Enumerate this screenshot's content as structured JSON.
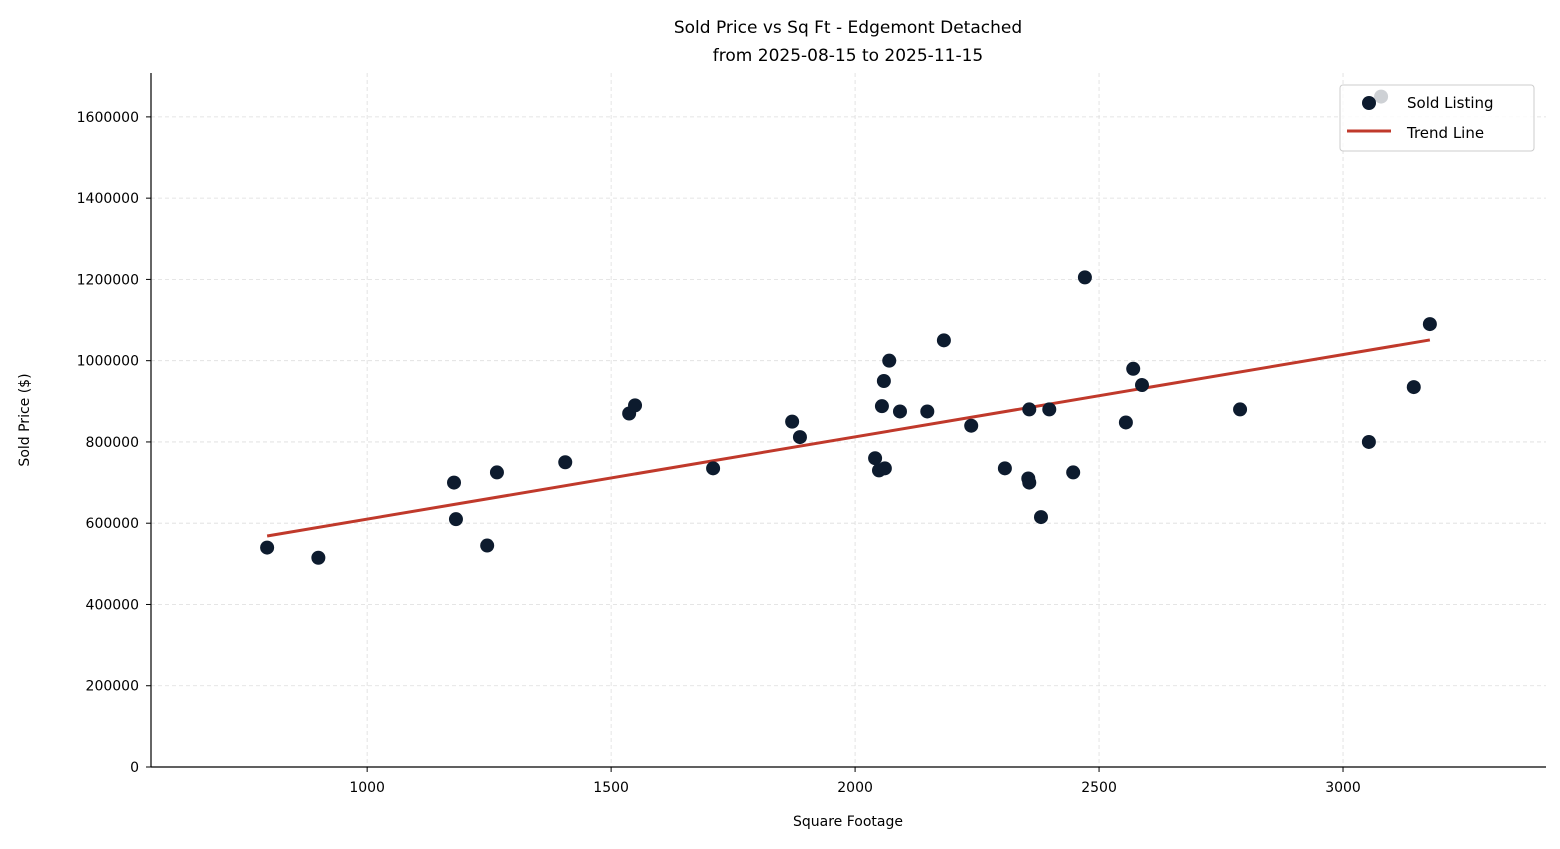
{
  "chart_data": {
    "type": "scatter",
    "title": "Sold Price vs Sq Ft - Edgemont Detached",
    "subtitle": "from 2025-08-15 to 2025-11-15",
    "xlabel": "Square Footage",
    "ylabel": "Sold Price ($)",
    "xlim": [
      557,
      3416
    ],
    "ylim": [
      0,
      1708000
    ],
    "xticks": [
      1000,
      1500,
      2000,
      2500,
      3000
    ],
    "yticks": [
      0,
      200000,
      400000,
      600000,
      800000,
      1000000,
      1200000,
      1400000,
      1600000
    ],
    "grid": true,
    "legend_position": "top-right",
    "series": [
      {
        "name": "Sold Listing",
        "type": "scatter",
        "color": "#0d1b2e",
        "points": [
          [
            795,
            540000
          ],
          [
            900,
            515000
          ],
          [
            1178,
            700000
          ],
          [
            1182,
            610000
          ],
          [
            1246,
            545000
          ],
          [
            1266,
            725000
          ],
          [
            1406,
            750000
          ],
          [
            1537,
            870000
          ],
          [
            1549,
            890000
          ],
          [
            1709,
            735000
          ],
          [
            1871,
            850000
          ],
          [
            1887,
            812000
          ],
          [
            2041,
            760000
          ],
          [
            2049,
            730000
          ],
          [
            2061,
            735000
          ],
          [
            2055,
            888000
          ],
          [
            2059,
            950000
          ],
          [
            2070,
            1000000
          ],
          [
            2092,
            875000
          ],
          [
            2148,
            875000
          ],
          [
            2182,
            1050000
          ],
          [
            2238,
            840000
          ],
          [
            2307,
            735000
          ],
          [
            2357,
            880000
          ],
          [
            2355,
            710000
          ],
          [
            2357,
            700000
          ],
          [
            2381,
            615000
          ],
          [
            2398,
            880000
          ],
          [
            2447,
            725000
          ],
          [
            2471,
            1205000
          ],
          [
            2555,
            848000
          ],
          [
            2570,
            980000
          ],
          [
            2588,
            940000
          ],
          [
            2789,
            880000
          ],
          [
            3053,
            800000
          ],
          [
            3078,
            1650000
          ],
          [
            3145,
            935000
          ],
          [
            3178,
            1090000
          ]
        ]
      },
      {
        "name": "Trend Line",
        "type": "line",
        "color": "#c0392b",
        "points": [
          [
            795,
            568600
          ],
          [
            3178,
            1051000
          ]
        ]
      }
    ]
  }
}
